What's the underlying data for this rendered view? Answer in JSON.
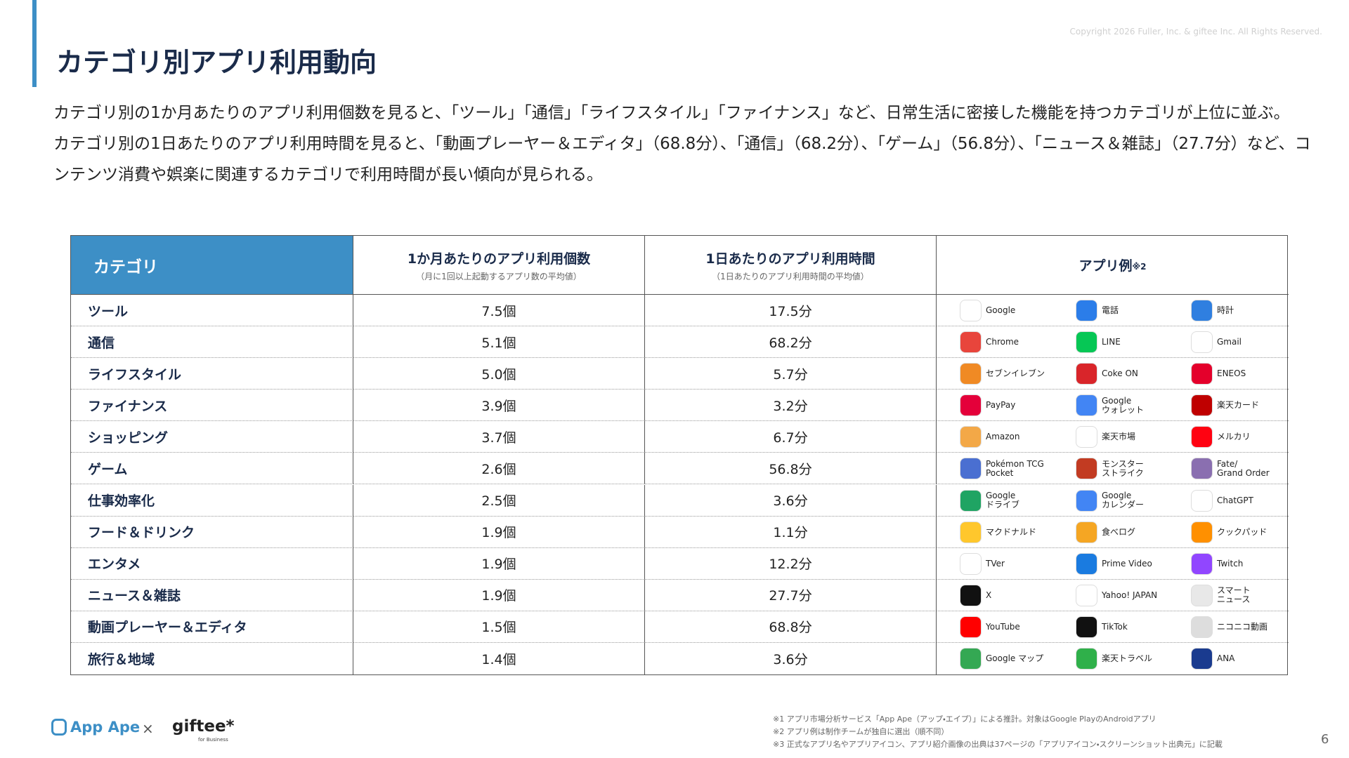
{
  "header": {
    "title": "カテゴリ別アプリ利用動向",
    "copyright": "Copyright 2026 Fuller, Inc. & giftee Inc. All Rights Reserved."
  },
  "body": {
    "paragraphs": [
      "カテゴリ別の1か月あたりのアプリ利用個数を見ると、「ツール」「通信」「ライフスタイル」「ファイナンス」など、日常生活に密接した機能を持つカテゴリが上位に並ぶ。",
      "カテゴリ別の1日あたりのアプリ利用時間を見ると、「動画プレーヤー＆エディタ」（68.8分）、「通信」（68.2分）、「ゲーム」（56.8分）、「ニュース＆雑誌」（27.7分）など、コンテンツ消費や娯楽に関連するカテゴリで利用時間が長い傾向が見られる。"
    ]
  },
  "table": {
    "header": {
      "category": "カテゴリ",
      "count": "1か月あたりのアプリ利用個数",
      "count_note": "（月に1回以上起動するアプリ数の平均値）",
      "time": "1日あたりのアプリ利用時間",
      "time_note": "（1日あたりのアプリ利用時間の平均値）",
      "apps": "アプリ例",
      "apps_note": "※2"
    },
    "rows": [
      [
        "ツール",
        "7.5個",
        "17.5分",
        [
          "Google",
          "電話",
          "時計"
        ]
      ],
      [
        "通信",
        "5.1個",
        "68.2分",
        [
          "Chrome",
          "LINE",
          "Gmail"
        ]
      ],
      [
        "ライフスタイル",
        "5.0個",
        "5.7分",
        [
          "セブンイレブン",
          "Coke ON",
          "ENEOS"
        ]
      ],
      [
        "ファイナンス",
        "3.9個",
        "3.2分",
        [
          "PayPay",
          "Google\nウォレット",
          "楽天カード"
        ]
      ],
      [
        "ショッピング",
        "3.7個",
        "6.7分",
        [
          "Amazon",
          "楽天市場",
          "メルカリ"
        ]
      ],
      [
        "ゲーム",
        "2.6個",
        "56.8分",
        [
          "Pokémon TCG\nPocket",
          "モンスター\nストライク",
          "Fate/\nGrand Order"
        ]
      ],
      [
        "仕事効率化",
        "2.5個",
        "3.6分",
        [
          "Google\nドライブ",
          "Google\nカレンダー",
          "ChatGPT"
        ]
      ],
      [
        "フード＆ドリンク",
        "1.9個",
        "1.1分",
        [
          "マクドナルド",
          "食べログ",
          "クックパッド"
        ]
      ],
      [
        "エンタメ",
        "1.9個",
        "12.2分",
        [
          "TVer",
          "Prime Video",
          "Twitch"
        ]
      ],
      [
        "ニュース＆雑誌",
        "1.9個",
        "27.7分",
        [
          "X",
          "Yahoo! JAPAN",
          "スマート\nニュース"
        ]
      ],
      [
        "動画プレーヤー＆エディタ",
        "1.5個",
        "68.8分",
        [
          "YouTube",
          "TikTok",
          "ニコニコ動画"
        ]
      ],
      [
        "旅行＆地域",
        "1.4個",
        "3.6分",
        [
          "Google マップ",
          "楽天トラベル",
          "ANA"
        ]
      ]
    ]
  },
  "footer": {
    "logo_left": "App Ape",
    "logo_x": "×",
    "logo_right": "giftee*",
    "logo_right_sub": "for Business",
    "notes": [
      "※1 アプリ市場分析サービス「App Ape（アップ・エイプ）」による推計。対象はGoogle PlayのAndroidアプリ",
      "※2 アプリ例は制作チームが独自に選出（順不同）",
      "※3 正式なアプリ名やアプリアイコン、アプリ紹介画像の出典は37ページの「アプリアイコン・スクリーンショット出典元」に記載"
    ],
    "page": "6"
  }
}
